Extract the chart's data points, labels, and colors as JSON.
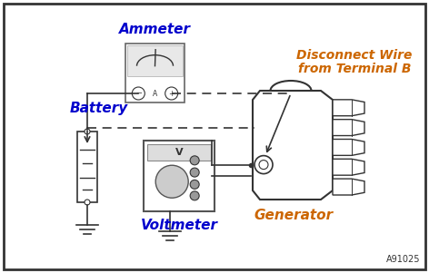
{
  "bg_color": "#ffffff",
  "border_color": "#333333",
  "text_color_blue": "#0000cc",
  "text_color_orange": "#cc6600",
  "line_color": "#333333",
  "ammeter_label": "Ammeter",
  "voltmeter_label": "Voltmeter",
  "battery_label": "Battery",
  "generator_label": "Generator",
  "disconnect_line1": "Disconnect Wire",
  "disconnect_line2": "from Terminal B",
  "code_label": "A91025"
}
